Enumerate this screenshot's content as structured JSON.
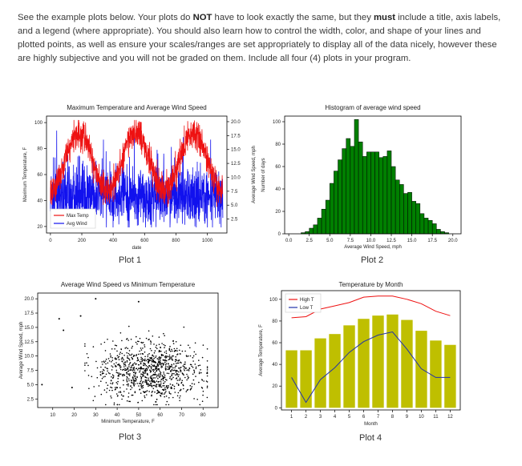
{
  "instructions": {
    "part1": "See the example plots below. Your plots do ",
    "emphasis": "NOT",
    "part2": " have to look exactly the same, but they ",
    "emphasis2": "must",
    "part3": " include a title, axis labels, and a legend (where appropriate). You should also learn how to control the width, color, and shape of your lines and plotted points, as well as ensure your scales/ranges are set appropriately to display all of the data nicely, however these are highly subjective and you will not be graded on them. Include all four (4) plots in your program."
  },
  "captions": [
    "Plot 1",
    "Plot 2",
    "Plot 3",
    "Plot 4"
  ],
  "colors": {
    "max_temp": "#ee1111",
    "avg_wind": "#1111ee",
    "hist_bar": "#007f00",
    "scatter": "#000000",
    "bar_c": "#bfbf00",
    "high": "#ee1111",
    "low": "#2233aa"
  },
  "chart_data": [
    {
      "type": "line",
      "title": "Maximum Temperature and Average Wind Speed",
      "xlabel": "date",
      "ylabel": "Maximum Temperature, F",
      "ylabel2": "Average Wind Speed, mph",
      "xlim": [
        -25,
        1125
      ],
      "ylim": [
        15,
        105
      ],
      "ylim2": [
        0,
        21
      ],
      "xticks": [
        "0",
        "200",
        "400",
        "600",
        "800",
        "1000"
      ],
      "yticks": [
        "20",
        "40",
        "60",
        "80",
        "100"
      ],
      "yticks2": [
        "2.5",
        "5.0",
        "7.5",
        "10.0",
        "12.5",
        "15.0",
        "17.5",
        "20.0"
      ],
      "legend": [
        "Max Temp",
        "Avg Wind"
      ],
      "series": [
        {
          "name": "Max Temp",
          "note": "daily maximum temperature, seasonal cycle ~40-100 F over ~1100 days",
          "peaks_at_days": [
            180,
            545,
            910
          ],
          "range": [
            35,
            102
          ]
        },
        {
          "name": "Avg Wind",
          "note": "daily average wind speed on secondary axis",
          "range": [
            1,
            21
          ],
          "typical": [
            3,
            12
          ]
        }
      ]
    },
    {
      "type": "bar",
      "title": "Histogram of average wind speed",
      "xlabel": "Average Wind Speed, mph",
      "ylabel": "Number of days",
      "xlim": [
        -0.5,
        21
      ],
      "ylim": [
        0,
        105
      ],
      "xticks": [
        "0.0",
        "2.5",
        "5.0",
        "7.5",
        "10.0",
        "12.5",
        "15.0",
        "17.5",
        "20.0"
      ],
      "yticks": [
        "0",
        "20",
        "40",
        "60",
        "80",
        "100"
      ],
      "bin_width": 0.5,
      "bin_start": 1.5,
      "values": [
        1,
        2,
        5,
        8,
        14,
        22,
        30,
        45,
        56,
        66,
        76,
        85,
        78,
        102,
        82,
        69,
        73,
        73,
        73,
        68,
        69,
        74,
        60,
        48,
        44,
        36,
        37,
        29,
        27,
        18,
        14,
        12,
        9,
        4,
        2,
        1
      ]
    },
    {
      "type": "scatter",
      "title": "Average Wind Speed vs Minimum Temperature",
      "xlabel": "Minimum Temperature, F",
      "ylabel": "Average Wind Speed, mph",
      "xlim": [
        3,
        87
      ],
      "ylim": [
        1,
        21
      ],
      "xticks": [
        "10",
        "20",
        "30",
        "40",
        "50",
        "60",
        "70",
        "80"
      ],
      "yticks": [
        "2.5",
        "5.0",
        "7.5",
        "10.0",
        "12.5",
        "15.0",
        "17.5",
        "20.0"
      ],
      "note": "about 1100 points, min temp mostly 25-80 F, wind mostly 2-15 mph",
      "outliers": [
        [
          5,
          5
        ],
        [
          13,
          16.5
        ],
        [
          15,
          14.5
        ],
        [
          19,
          4.5
        ],
        [
          23,
          17
        ],
        [
          30,
          20
        ],
        [
          50,
          19.5
        ],
        [
          58,
          2
        ]
      ]
    },
    {
      "type": "bar",
      "title": "Temperature by Month",
      "xlabel": "Month",
      "ylabel": "Average Temperature, F",
      "xlim": [
        0.3,
        12.7
      ],
      "ylim": [
        -2,
        108
      ],
      "categories": [
        "1",
        "2",
        "3",
        "4",
        "5",
        "6",
        "7",
        "8",
        "9",
        "10",
        "11",
        "12"
      ],
      "yticks": [
        "0",
        "20",
        "40",
        "60",
        "80",
        "100"
      ],
      "values": [
        53,
        53,
        64,
        68,
        76,
        82,
        85,
        86,
        81,
        71,
        62,
        58
      ],
      "series": [
        {
          "name": "High T",
          "values": [
            83,
            84,
            91,
            94,
            97,
            102,
            103,
            103,
            100,
            96,
            89,
            85
          ]
        },
        {
          "name": "Low T",
          "values": [
            28,
            5,
            26,
            37,
            51,
            61,
            67,
            70,
            54,
            36,
            28,
            28
          ]
        }
      ],
      "legend": [
        "High T",
        "Low T"
      ]
    }
  ]
}
